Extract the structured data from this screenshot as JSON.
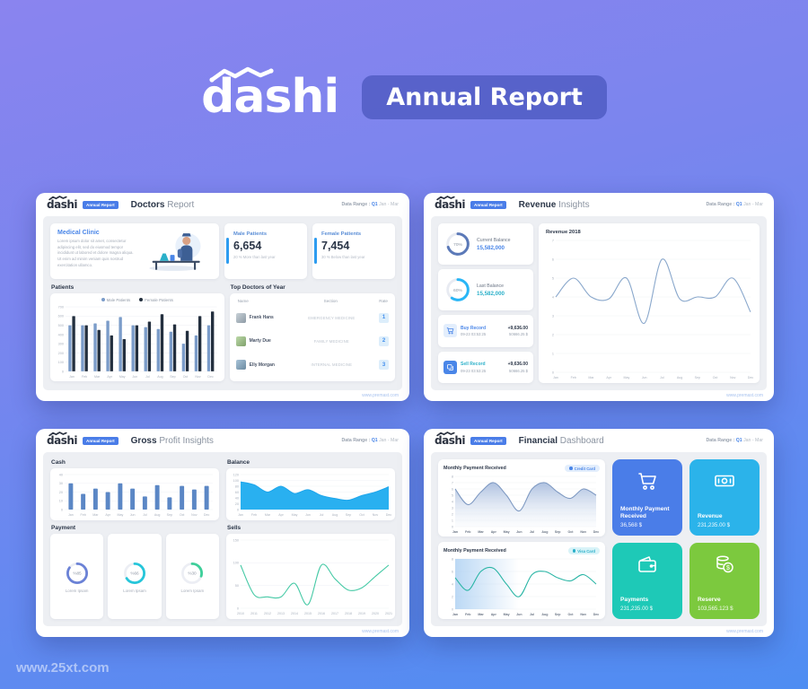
{
  "header": {
    "logo": "dashi",
    "badge": "Annual Report"
  },
  "watermark": "www.25xt.com",
  "icons": {
    "logo-squiggle-icon": "zigzag chart line over logo",
    "cart-icon": "shopping cart",
    "copy-icon": "sell transfer squares",
    "banknote-icon": "dollar banknote",
    "wallet-icon": "wallet with money",
    "coins-icon": "coin stack with dollar",
    "dot-icon": "badge status dot"
  },
  "panels": {
    "doctors": {
      "logo": "dashi",
      "badge": "Annual Report",
      "title_bold": "Doctors",
      "title_rest": " Report",
      "range_label": "Data Range :",
      "range_q": " Q1",
      "range_rest": " Jan - Mar",
      "clinic": {
        "title": "Medical Clinic",
        "body": "Lorem ipsum dolor sit amet, consectetur adipiscing elit, sed do eiusmod tempor incididunt ut labored et dolore magna aliqua. Ut enim ad minim veniam quis nostrud exercitation ullamco."
      },
      "male": {
        "label": "Male Patients",
        "value": "6,654",
        "note": "20 % More than last year"
      },
      "female": {
        "label": "Female Patients",
        "value": "7,454",
        "note": "30 % Below than last year"
      },
      "patients_label": "Patients",
      "doctors_table": {
        "title": "Top Doctors of Year",
        "col_name": "Name",
        "col_section": "Section",
        "col_rate": "Rate",
        "rows": [
          {
            "name": "Frank Hans",
            "section": "EMERGENCY MEDICINE",
            "rate": "1"
          },
          {
            "name": "Marty Due",
            "section": "FAMILY MEDICINE",
            "rate": "2"
          },
          {
            "name": "Elly Morgan",
            "section": "INTERNAL MEDICINE",
            "rate": "3"
          }
        ]
      },
      "footer": "www.premast.com"
    },
    "revenue": {
      "logo": "dashi",
      "badge": "Annual Report",
      "title_bold": "Revenue",
      "title_rest": " Insights",
      "range_label": "Data Range :",
      "range_q": " Q1",
      "range_rest": " Jan - Mar",
      "current": {
        "label": "Current Balance",
        "value": "15,582,000",
        "value_color": "#4a86e8"
      },
      "last": {
        "label": "Last Balance",
        "value": "15,582,000",
        "value_color": "#2bb0c9"
      },
      "buy": {
        "label": "Buy Record",
        "label_color": "#4a86e8",
        "date": "09-23 03:53:25",
        "amount": "+9,636.00",
        "total": "50666.25 $"
      },
      "sell": {
        "label": "Sell Record",
        "label_color": "#2bb0c9",
        "date": "09-23 03:53:25",
        "amount": "+9,636.00",
        "total": "50666.25 $"
      },
      "chart_title": "Revenue 2018",
      "footer": "www.premast.com"
    },
    "gross": {
      "logo": "dashi",
      "badge": "Annual Report",
      "title_bold": "Gross",
      "title_rest": " Profit Insights",
      "range_label": "Data Range :",
      "range_q": " Q1",
      "range_rest": " Jan - Mar",
      "cash_label": "Cash",
      "balance_label": "Balance",
      "payment_label": "Payment",
      "sells_label": "Sells",
      "donut_captions": [
        "Lorem Ipsam",
        "Lorem Ipsam",
        "Lorem Ipsam"
      ],
      "footer": "www.premast.com"
    },
    "financial": {
      "logo": "dashi",
      "badge": "Annual Report",
      "title_bold": "Financial",
      "title_rest": " Dashboard",
      "range_label": "Data Range :",
      "range_q": " Q1",
      "range_rest": " Jan - Mar",
      "chart1": {
        "title": "Monthly Payment Received",
        "badge": "Credit Card"
      },
      "chart2": {
        "title": "Monthly Payment Received",
        "badge": "Visa Card"
      },
      "tiles": [
        {
          "label": "Monthly Payment Received",
          "value": "36,568 $",
          "color": "#4a7de8"
        },
        {
          "label": "Revenue",
          "value": "231,235.00 $",
          "color": "#2bb3ea"
        },
        {
          "label": "Payments",
          "value": "231,235.00 $",
          "color": "#1ec9b7"
        },
        {
          "label": "Reserve",
          "value": "103,565.123 $",
          "color": "#7cc93e"
        }
      ],
      "footer": "www.premast.com"
    }
  },
  "chart_data": [
    {
      "id": "patients",
      "type": "grouped_bar",
      "title": "Patients",
      "categories": [
        "Jan",
        "Feb",
        "Mar",
        "Apr",
        "May",
        "Jun",
        "Jul",
        "Aug",
        "Sep",
        "Oct",
        "Nov",
        "Dec"
      ],
      "series": [
        {
          "name": "Male Patients",
          "color": "#7b9cc9",
          "values": [
            500,
            500,
            520,
            550,
            590,
            500,
            480,
            460,
            430,
            300,
            390,
            500
          ]
        },
        {
          "name": "Female Patients",
          "color": "#232f3e",
          "values": [
            600,
            500,
            450,
            390,
            350,
            500,
            540,
            620,
            510,
            440,
            600,
            650
          ]
        }
      ],
      "ylim": [
        0,
        700
      ],
      "yticks": [
        0,
        100,
        200,
        300,
        400,
        500,
        600,
        700
      ],
      "legend": "top",
      "grid": true
    },
    {
      "id": "revenue2018",
      "type": "line",
      "title": "Revenue 2018",
      "categories": [
        "Jan",
        "Feb",
        "Mar",
        "Apr",
        "May",
        "Jun",
        "Jul",
        "Aug",
        "Sep",
        "Oct",
        "Nov",
        "Dec"
      ],
      "values": [
        4,
        5,
        4,
        3.9,
        5,
        2.6,
        6,
        3.9,
        4,
        4,
        5,
        3.2
      ],
      "color": "#8aa8cc",
      "ylim": [
        0,
        7
      ],
      "yticks": [
        0,
        1,
        2,
        3,
        4,
        5,
        6,
        7
      ],
      "grid": true
    },
    {
      "id": "cash",
      "type": "bar",
      "title": "Cash",
      "categories": [
        "Jan",
        "Feb",
        "Mar",
        "Apr",
        "May",
        "Jun",
        "Jul",
        "Aug",
        "Sep",
        "Oct",
        "Nov",
        "Dec"
      ],
      "values": [
        30,
        18,
        24,
        20,
        30,
        24,
        15,
        28,
        14,
        27,
        23,
        27
      ],
      "color": "#5b87c5",
      "ylim": [
        0,
        40
      ],
      "yticks": [
        0,
        10,
        20,
        30,
        40
      ],
      "grid": true
    },
    {
      "id": "balance",
      "type": "area",
      "title": "Balance",
      "categories": [
        "Jan",
        "Feb",
        "Mar",
        "Apr",
        "May",
        "Jun",
        "Jul",
        "Aug",
        "Sep",
        "Oct",
        "Nov",
        "Dec"
      ],
      "values": [
        95,
        85,
        60,
        80,
        55,
        68,
        48,
        38,
        32,
        48,
        60,
        78
      ],
      "color": "#1ea6ec",
      "fill": "#29b0f0",
      "ylim": [
        0,
        120
      ],
      "yticks": [
        0,
        20,
        40,
        60,
        80,
        100,
        120
      ],
      "grid": true
    },
    {
      "id": "donut_current",
      "type": "donut",
      "value": 70,
      "label": "70%",
      "color": "#5b79b8",
      "track": "#e8ebf2"
    },
    {
      "id": "donut_last",
      "type": "donut",
      "value": 60,
      "label": "60%",
      "color": "#29b6f6",
      "track": "#e8ebf2"
    },
    {
      "id": "donut_p1",
      "type": "donut",
      "value": 85,
      "label": "%85",
      "color": "#6b82d6",
      "track": "#eceef4"
    },
    {
      "id": "donut_p2",
      "type": "donut",
      "value": 66,
      "label": "%66",
      "color": "#26c6da",
      "track": "#eceef4"
    },
    {
      "id": "donut_p3",
      "type": "donut",
      "value": 30,
      "label": "%30",
      "color": "#3ecf9a",
      "track": "#eceef4"
    },
    {
      "id": "sells",
      "type": "line",
      "title": "Sells",
      "categories": [
        "2010",
        "2011",
        "2012",
        "2013",
        "2014",
        "2015",
        "2016",
        "2017",
        "2018",
        "2019",
        "2020",
        "2021"
      ],
      "values": [
        95,
        30,
        25,
        25,
        55,
        8,
        95,
        65,
        40,
        45,
        70,
        95
      ],
      "color": "#45c9a5",
      "ylim": [
        0,
        150
      ],
      "yticks": [
        0,
        50,
        100,
        150
      ],
      "grid": true
    },
    {
      "id": "monthly_credit",
      "type": "area",
      "title": "Monthly Payment Received (Credit Card)",
      "categories": [
        "Jan",
        "Feb",
        "Mar",
        "Apr",
        "May",
        "Jun",
        "Jul",
        "Aug",
        "Sep",
        "Oct",
        "Nov",
        "Dec"
      ],
      "values": [
        6,
        3.5,
        5.5,
        7,
        5,
        2.5,
        6,
        7,
        5.5,
        4.5,
        6,
        5
      ],
      "color": "#7e99c2",
      "fill": "gradient",
      "fill_from": "#a9bdde",
      "fill_to": "#f2f6fb",
      "ylim": [
        0,
        8
      ],
      "yticks": [
        0,
        1,
        2,
        3,
        4,
        5,
        6,
        7,
        8
      ],
      "bold_x": true,
      "grid": true
    },
    {
      "id": "monthly_visa",
      "type": "line",
      "title": "Monthly Payment Received (Visa Card)",
      "categories": [
        "Jan",
        "Feb",
        "Mar",
        "Apr",
        "May",
        "Jun",
        "Jul",
        "Aug",
        "Sep",
        "Oct",
        "Nov",
        "Dec"
      ],
      "values": [
        5,
        3,
        6,
        6.5,
        4,
        2,
        5.5,
        6,
        5,
        4.5,
        5.5,
        4
      ],
      "color": "#2ab5a5",
      "backdrop": true,
      "backdrop_color": "#9ec8f0",
      "ylim": [
        0,
        8
      ],
      "yticks": [
        0,
        2,
        4,
        6,
        8
      ],
      "bold_x": true,
      "grid": true
    }
  ]
}
